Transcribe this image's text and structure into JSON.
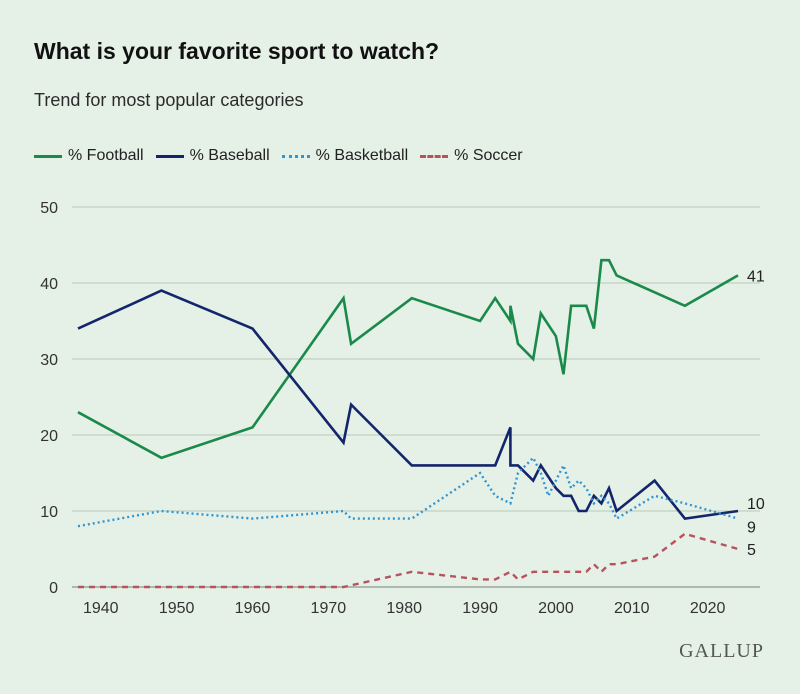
{
  "title": "What is your favorite sport to watch?",
  "subtitle": "Trend for most popular categories",
  "brand": "GALLUP",
  "colors": {
    "background": "#e5f0e6",
    "grid": "#b9c8bb",
    "football": "#1a8a4a",
    "baseball": "#14266b",
    "basketball": "#2e96d3",
    "soccer": "#b8535e"
  },
  "chart_data": {
    "type": "line",
    "title": "What is your favorite sport to watch?",
    "subtitle": "Trend for most popular categories",
    "xlabel": "",
    "ylabel": "",
    "xlim": [
      1937,
      2024
    ],
    "ylim": [
      0,
      50
    ],
    "x_ticks": [
      1940,
      1950,
      1960,
      1970,
      1980,
      1990,
      2000,
      2010,
      2020
    ],
    "y_ticks": [
      0,
      10,
      20,
      30,
      40,
      50
    ],
    "grid": "horizontal",
    "legend": "top-left",
    "series": [
      {
        "name": "% Football",
        "color_key": "football",
        "style": "solid",
        "end_label": "41",
        "points": [
          [
            1937,
            23
          ],
          [
            1948,
            17
          ],
          [
            1960,
            21
          ],
          [
            1972,
            38
          ],
          [
            1973,
            32
          ],
          [
            1981,
            38
          ],
          [
            1990,
            35
          ],
          [
            1992,
            38
          ],
          [
            1994,
            35
          ],
          [
            1994,
            37
          ],
          [
            1995,
            32
          ],
          [
            1997,
            30
          ],
          [
            1998,
            36
          ],
          [
            2000,
            33
          ],
          [
            2001,
            28
          ],
          [
            2002,
            37
          ],
          [
            2004,
            37
          ],
          [
            2005,
            34
          ],
          [
            2006,
            43
          ],
          [
            2007,
            43
          ],
          [
            2008,
            41
          ],
          [
            2017,
            37
          ],
          [
            2024,
            41
          ]
        ]
      },
      {
        "name": "% Baseball",
        "color_key": "baseball",
        "style": "solid",
        "end_label": "10",
        "points": [
          [
            1937,
            34
          ],
          [
            1948,
            39
          ],
          [
            1960,
            34
          ],
          [
            1972,
            19
          ],
          [
            1973,
            24
          ],
          [
            1981,
            16
          ],
          [
            1992,
            16
          ],
          [
            1994,
            21
          ],
          [
            1994,
            16
          ],
          [
            1995,
            16
          ],
          [
            1997,
            14
          ],
          [
            1998,
            16
          ],
          [
            2000,
            13
          ],
          [
            2001,
            12
          ],
          [
            2002,
            12
          ],
          [
            2003,
            10
          ],
          [
            2004,
            10
          ],
          [
            2005,
            12
          ],
          [
            2006,
            11
          ],
          [
            2007,
            13
          ],
          [
            2008,
            10
          ],
          [
            2013,
            14
          ],
          [
            2017,
            9
          ],
          [
            2024,
            10
          ]
        ]
      },
      {
        "name": "% Basketball",
        "color_key": "basketball",
        "style": "dotted",
        "end_label": "9",
        "points": [
          [
            1937,
            8
          ],
          [
            1948,
            10
          ],
          [
            1960,
            9
          ],
          [
            1972,
            10
          ],
          [
            1973,
            9
          ],
          [
            1981,
            9
          ],
          [
            1990,
            15
          ],
          [
            1992,
            12
          ],
          [
            1994,
            11
          ],
          [
            1995,
            15
          ],
          [
            1997,
            17
          ],
          [
            1998,
            15
          ],
          [
            1999,
            12
          ],
          [
            2000,
            14
          ],
          [
            2001,
            16
          ],
          [
            2002,
            13
          ],
          [
            2003,
            14
          ],
          [
            2004,
            13
          ],
          [
            2005,
            11
          ],
          [
            2006,
            12
          ],
          [
            2007,
            11
          ],
          [
            2008,
            9
          ],
          [
            2013,
            12
          ],
          [
            2017,
            11
          ],
          [
            2024,
            9
          ]
        ]
      },
      {
        "name": "% Soccer",
        "color_key": "soccer",
        "style": "dashed",
        "end_label": "5",
        "points": [
          [
            1937,
            0
          ],
          [
            1972,
            0
          ],
          [
            1981,
            2
          ],
          [
            1990,
            1
          ],
          [
            1992,
            1
          ],
          [
            1994,
            2
          ],
          [
            1995,
            1
          ],
          [
            1997,
            2
          ],
          [
            2000,
            2
          ],
          [
            2004,
            2
          ],
          [
            2005,
            3
          ],
          [
            2006,
            2
          ],
          [
            2007,
            3
          ],
          [
            2008,
            3
          ],
          [
            2013,
            4
          ],
          [
            2017,
            7
          ],
          [
            2024,
            5
          ]
        ]
      }
    ]
  }
}
